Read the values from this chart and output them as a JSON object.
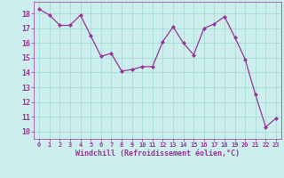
{
  "hours": [
    0,
    1,
    2,
    3,
    4,
    5,
    6,
    7,
    8,
    9,
    10,
    11,
    12,
    13,
    14,
    15,
    16,
    17,
    18,
    19,
    20,
    21,
    22,
    23
  ],
  "values": [
    18.3,
    17.9,
    17.2,
    17.2,
    17.9,
    16.5,
    15.1,
    15.3,
    14.1,
    14.2,
    14.4,
    14.4,
    16.1,
    17.1,
    16.0,
    15.2,
    17.0,
    17.3,
    17.8,
    16.4,
    14.9,
    12.5,
    10.3,
    10.9
  ],
  "line_color": "#993399",
  "marker": "D",
  "marker_size": 2,
  "bg_color": "#cceeed",
  "grid_color": "#aadddd",
  "xlabel": "Windchill (Refroidissement éolien,°C)",
  "xlabel_color": "#993399",
  "tick_color": "#993399",
  "ylabel_ticks": [
    10,
    11,
    12,
    13,
    14,
    15,
    16,
    17,
    18
  ],
  "ylim": [
    9.5,
    18.8
  ],
  "xlim": [
    -0.5,
    23.5
  ]
}
